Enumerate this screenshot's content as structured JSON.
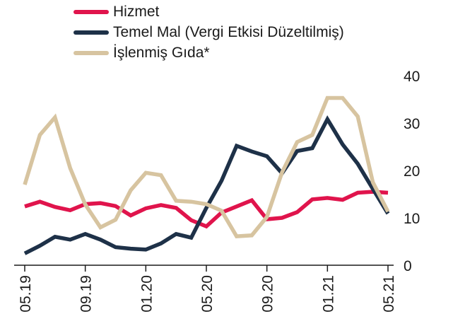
{
  "chart_data": {
    "type": "line",
    "x": [
      "05.19",
      "06.19",
      "07.19",
      "08.19",
      "09.19",
      "10.19",
      "11.19",
      "12.19",
      "01.20",
      "02.20",
      "03.20",
      "04.20",
      "05.20",
      "06.20",
      "07.20",
      "08.20",
      "09.20",
      "10.20",
      "11.20",
      "12.20",
      "01.21",
      "02.21",
      "03.21",
      "04.21",
      "05.21"
    ],
    "xticks": [
      "05.19",
      "09.19",
      "01.20",
      "05.20",
      "09.20",
      "01.21",
      "05.21"
    ],
    "ylim": [
      0,
      40
    ],
    "yticks": [
      "0",
      "10",
      "20",
      "30",
      "40"
    ],
    "grid": false,
    "legend_position": "top-left",
    "series": [
      {
        "name": "Hizmet",
        "color": "#e0144c",
        "values": [
          12.4,
          13.4,
          12.3,
          11.6,
          12.9,
          13.1,
          12.5,
          10.5,
          12.0,
          12.7,
          12.1,
          9.5,
          8.2,
          11.1,
          12.4,
          13.7,
          9.7,
          10.0,
          11.2,
          13.9,
          14.2,
          13.8,
          15.3,
          15.5,
          15.3
        ]
      },
      {
        "name": "Temel Mal (Vergi Etkisi Düzeltilmiş)",
        "color": "#1e3148",
        "values": [
          2.5,
          4.1,
          6.0,
          5.4,
          6.6,
          5.4,
          3.8,
          3.5,
          3.3,
          4.6,
          6.6,
          5.8,
          12.1,
          17.8,
          25.2,
          24.0,
          23.0,
          19.4,
          24.1,
          24.7,
          30.8,
          25.5,
          21.4,
          16.1,
          10.9
        ]
      },
      {
        "name": "İşlenmiş Gıda*",
        "color": "#d7c4a0",
        "values": [
          17.0,
          27.5,
          31.2,
          20.5,
          12.8,
          8.0,
          9.6,
          15.8,
          19.5,
          19.0,
          13.6,
          13.4,
          12.9,
          11.5,
          6.1,
          6.3,
          10.2,
          19.6,
          26.0,
          27.5,
          35.3,
          35.3,
          31.4,
          17.5,
          11.3
        ]
      }
    ]
  }
}
